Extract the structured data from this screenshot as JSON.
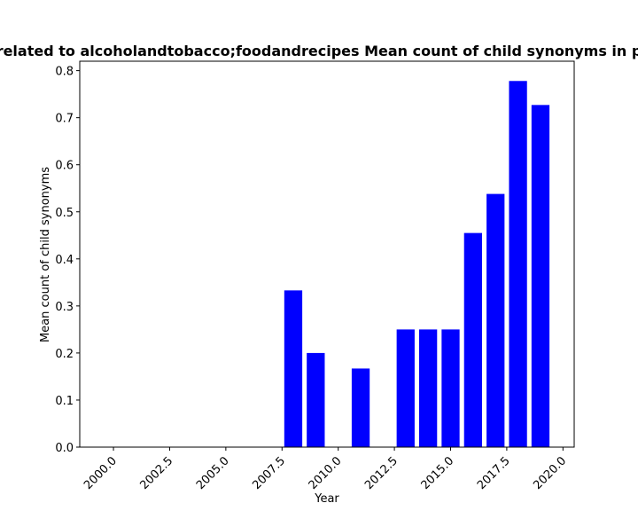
{
  "chart_data": {
    "type": "bar",
    "title": "related to alcoholandtobacco;foodandrecipes Mean count of child synonyms in p",
    "xlabel": "Year",
    "ylabel": "Mean count of child synonyms",
    "xlim": [
      1998.5,
      2020.5
    ],
    "ylim": [
      0,
      0.82
    ],
    "grid": false,
    "bar_color": "#0000ff",
    "x": [
      2008,
      2009,
      2011,
      2013,
      2014,
      2015,
      2016,
      2017,
      2018,
      2019
    ],
    "values": [
      0.333,
      0.2,
      0.167,
      0.25,
      0.25,
      0.25,
      0.455,
      0.538,
      0.778,
      0.727
    ],
    "xticks": [
      2000.0,
      2002.5,
      2005.0,
      2007.5,
      2010.0,
      2012.5,
      2015.0,
      2017.5,
      2020.0
    ],
    "xtick_labels": [
      "2000.0",
      "2002.5",
      "2005.0",
      "2007.5",
      "2010.0",
      "2012.5",
      "2015.0",
      "2017.5",
      "2020.0"
    ],
    "yticks": [
      0.0,
      0.1,
      0.2,
      0.3,
      0.4,
      0.5,
      0.6,
      0.7,
      0.8
    ],
    "ytick_labels": [
      "0.0",
      "0.1",
      "0.2",
      "0.3",
      "0.4",
      "0.5",
      "0.6",
      "0.7",
      "0.8"
    ]
  }
}
